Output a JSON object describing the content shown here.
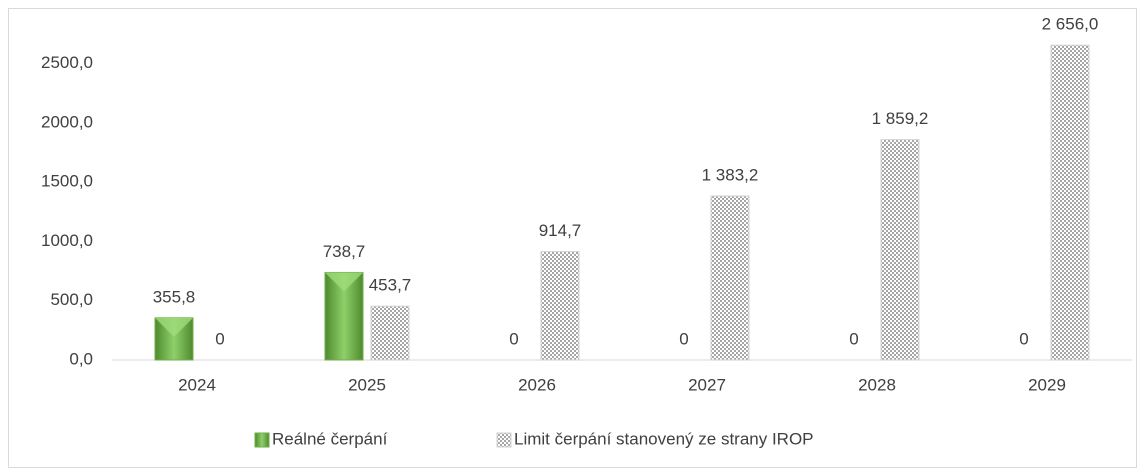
{
  "chart_data": {
    "type": "bar",
    "categories": [
      "2024",
      "2025",
      "2026",
      "2027",
      "2028",
      "2029"
    ],
    "series": [
      {
        "name": "Reálné čerpání",
        "color": "#70ad47",
        "values": [
          355.8,
          738.7,
          0,
          0,
          0,
          0
        ],
        "value_labels": [
          "355,8",
          "738,7",
          "0",
          "0",
          "0",
          "0"
        ]
      },
      {
        "name": "Limit čerpání stanovený ze strany IROP",
        "color": "#a6a6a6",
        "values": [
          0,
          453.7,
          914.7,
          1383.2,
          1859.2,
          2656.0
        ],
        "value_labels": [
          "0",
          "453,7",
          "914,7",
          "1 383,2",
          "1 859,2",
          "2 656,0"
        ]
      }
    ],
    "ylim": [
      0,
      2700
    ],
    "yticks": [
      {
        "value": 0,
        "label": "0,0"
      },
      {
        "value": 500,
        "label": "500,0"
      },
      {
        "value": 1000,
        "label": "1000,0"
      },
      {
        "value": 1500,
        "label": "1500,0"
      },
      {
        "value": 2000,
        "label": "2000,0"
      },
      {
        "value": 2500,
        "label": "2500,0"
      }
    ],
    "grid": false,
    "legend": "bottom"
  }
}
